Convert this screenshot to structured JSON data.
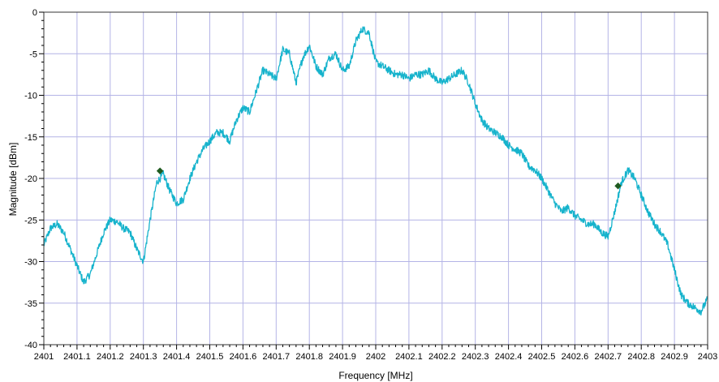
{
  "chart_data": {
    "type": "line",
    "title": "",
    "xlabel": "Frequency [MHz]",
    "ylabel": "Magnitude [dBm]",
    "xlim": [
      2401,
      2403
    ],
    "ylim": [
      -40,
      0
    ],
    "x_ticks": [
      2401,
      2401.1,
      2401.2,
      2401.3,
      2401.4,
      2401.5,
      2401.6,
      2401.7,
      2401.8,
      2401.9,
      2402,
      2402.1,
      2402.2,
      2402.3,
      2402.4,
      2402.5,
      2402.6,
      2402.7,
      2402.8,
      2402.9,
      2403
    ],
    "y_ticks": [
      0,
      -5,
      -10,
      -15,
      -20,
      -25,
      -30,
      -35,
      -40
    ],
    "grid": true,
    "grid_color": "#b4b4e6",
    "series": [
      {
        "color": "#16b3cc",
        "x": [
          2401.0,
          2401.02,
          2401.04,
          2401.06,
          2401.08,
          2401.1,
          2401.12,
          2401.14,
          2401.16,
          2401.18,
          2401.2,
          2401.22,
          2401.24,
          2401.26,
          2401.28,
          2401.3,
          2401.32,
          2401.34,
          2401.36,
          2401.38,
          2401.4,
          2401.42,
          2401.44,
          2401.46,
          2401.48,
          2401.5,
          2401.52,
          2401.54,
          2401.56,
          2401.58,
          2401.6,
          2401.62,
          2401.64,
          2401.66,
          2401.68,
          2401.7,
          2401.72,
          2401.74,
          2401.76,
          2401.78,
          2401.8,
          2401.82,
          2401.84,
          2401.86,
          2401.88,
          2401.9,
          2401.92,
          2401.94,
          2401.96,
          2401.98,
          2402.0,
          2402.02,
          2402.04,
          2402.06,
          2402.08,
          2402.1,
          2402.12,
          2402.14,
          2402.16,
          2402.18,
          2402.2,
          2402.22,
          2402.24,
          2402.26,
          2402.28,
          2402.3,
          2402.32,
          2402.34,
          2402.36,
          2402.38,
          2402.4,
          2402.42,
          2402.44,
          2402.46,
          2402.48,
          2402.5,
          2402.52,
          2402.54,
          2402.56,
          2402.58,
          2402.6,
          2402.62,
          2402.64,
          2402.66,
          2402.68,
          2402.7,
          2402.72,
          2402.74,
          2402.76,
          2402.78,
          2402.8,
          2402.82,
          2402.84,
          2402.86,
          2402.88,
          2402.9,
          2402.92,
          2402.94,
          2402.96,
          2402.98,
          2403.0
        ],
        "y": [
          -28,
          -26,
          -25.5,
          -26.5,
          -28.5,
          -30.5,
          -32.5,
          -31.5,
          -29.0,
          -26.5,
          -25.0,
          -25.2,
          -26.0,
          -26.5,
          -28.5,
          -30.0,
          -25.0,
          -20.5,
          -19.5,
          -21.5,
          -23.0,
          -22.5,
          -20.0,
          -18.0,
          -16.5,
          -15.5,
          -14.5,
          -14.5,
          -15.5,
          -13.0,
          -11.5,
          -12.0,
          -9.5,
          -7.0,
          -7.5,
          -8.0,
          -4.5,
          -5.0,
          -8.5,
          -5.5,
          -4.0,
          -6.5,
          -7.5,
          -5.5,
          -5.0,
          -7.0,
          -6.5,
          -3.5,
          -2.0,
          -2.5,
          -6.0,
          -6.5,
          -7.0,
          -7.5,
          -7.5,
          -8.0,
          -7.5,
          -7.5,
          -7.0,
          -8.0,
          -8.5,
          -8.0,
          -7.5,
          -7.0,
          -8.5,
          -11.0,
          -13.0,
          -14.0,
          -14.5,
          -15.0,
          -16.0,
          -16.5,
          -17.0,
          -18.5,
          -19.0,
          -20.0,
          -21.5,
          -23.0,
          -24.0,
          -23.5,
          -24.5,
          -25.0,
          -25.5,
          -25.5,
          -26.5,
          -27.0,
          -24.0,
          -20.5,
          -19.0,
          -20.0,
          -22.0,
          -24.0,
          -25.5,
          -26.5,
          -28.0,
          -31.0,
          -34.0,
          -35.0,
          -35.5,
          -36.0,
          -34.5
        ]
      }
    ],
    "markers": [
      {
        "x": 2401.35,
        "y": -19.1,
        "color": "#1f5a1f"
      },
      {
        "x": 2402.73,
        "y": -20.9,
        "color": "#1f5a1f"
      }
    ]
  }
}
